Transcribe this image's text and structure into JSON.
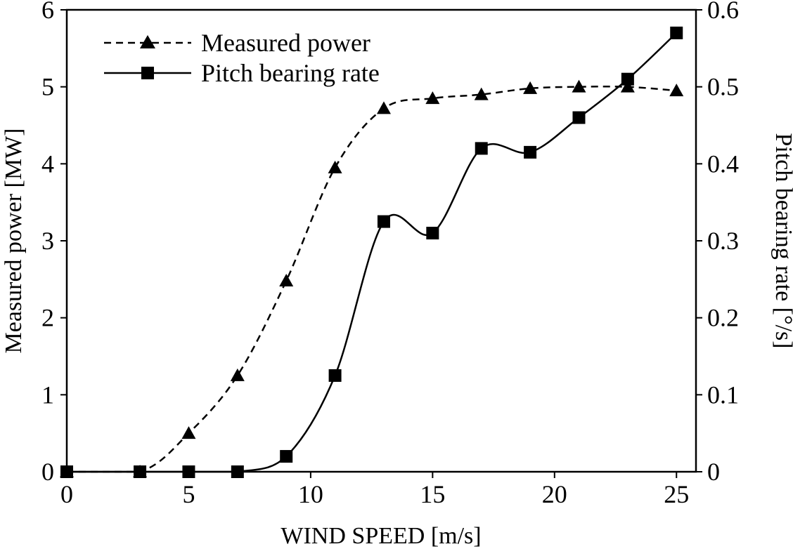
{
  "chart_data": {
    "type": "line",
    "title": "",
    "xlabel": "WIND SPEED [m/s]",
    "ylabel_left": "Measured power [MW]",
    "ylabel_right": "Pitch bearing rate [°/s]",
    "xlim": [
      0,
      25.8
    ],
    "ylim_left": [
      0,
      6
    ],
    "ylim_right": [
      0,
      0.6
    ],
    "x_ticks": [
      0,
      5,
      10,
      15,
      20,
      25
    ],
    "y_ticks_left": [
      0,
      1,
      2,
      3,
      4,
      5,
      6
    ],
    "y_ticks_right": [
      0,
      0.1,
      0.2,
      0.3,
      0.4,
      0.5,
      0.6
    ],
    "grid": false,
    "legend_position": "top-left",
    "x": [
      0,
      3,
      5,
      7,
      9,
      11,
      13,
      15,
      17,
      19,
      21,
      23,
      25
    ],
    "series": [
      {
        "name": "Measured power",
        "axis": "left",
        "marker": "triangle",
        "line_style": "dashed",
        "values": [
          0,
          0,
          0.5,
          1.25,
          2.48,
          3.95,
          4.72,
          4.85,
          4.9,
          4.98,
          5.0,
          5.0,
          4.95
        ]
      },
      {
        "name": "Pitch bearing rate",
        "axis": "right",
        "marker": "square",
        "line_style": "solid",
        "values": [
          0,
          0,
          0,
          0,
          0.02,
          0.125,
          0.325,
          0.31,
          0.42,
          0.415,
          0.46,
          0.51,
          0.57
        ]
      }
    ],
    "colors": {
      "line": "#000000",
      "marker": "#000000",
      "text": "#000000",
      "background": "#ffffff"
    }
  }
}
